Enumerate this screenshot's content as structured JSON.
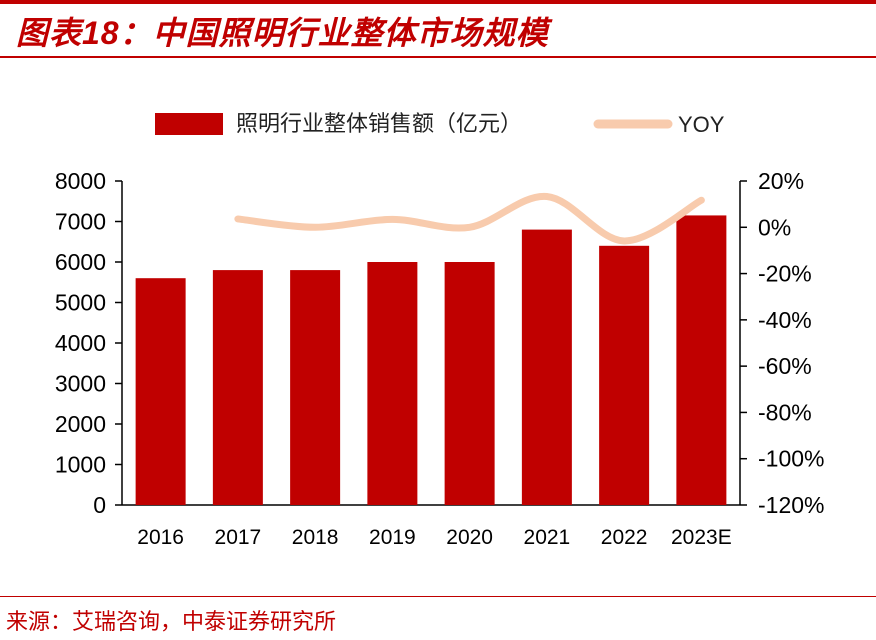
{
  "title": "图表18：中国照明行业整体市场规模",
  "source": "来源：艾瑞咨询，中泰证券研究所",
  "colors": {
    "bar": "#c00000",
    "line": "#f8cbad",
    "accent": "#c00000"
  },
  "chart_data": {
    "type": "bar+line",
    "categories": [
      "2016",
      "2017",
      "2018",
      "2019",
      "2020",
      "2021",
      "2022",
      "2023E"
    ],
    "series": [
      {
        "name": "照明行业整体销售额（亿元）",
        "type": "bar",
        "axis": "left",
        "values": [
          5600,
          5800,
          5800,
          6000,
          6000,
          6800,
          6400,
          7150
        ]
      },
      {
        "name": "YOY",
        "type": "line",
        "axis": "right",
        "smooth": true,
        "values": [
          null,
          3.6,
          0.0,
          3.4,
          0.0,
          13.3,
          -5.9,
          11.7
        ]
      }
    ],
    "left_axis": {
      "min": 0,
      "max": 8000,
      "ticks": [
        0,
        1000,
        2000,
        3000,
        4000,
        5000,
        6000,
        7000,
        8000
      ]
    },
    "right_axis": {
      "min": -120,
      "max": 20,
      "ticks": [
        "20%",
        "0%",
        "-20%",
        "-40%",
        "-60%",
        "-80%",
        "-100%",
        "-120%"
      ]
    },
    "legend": "top-center",
    "grid": false
  }
}
